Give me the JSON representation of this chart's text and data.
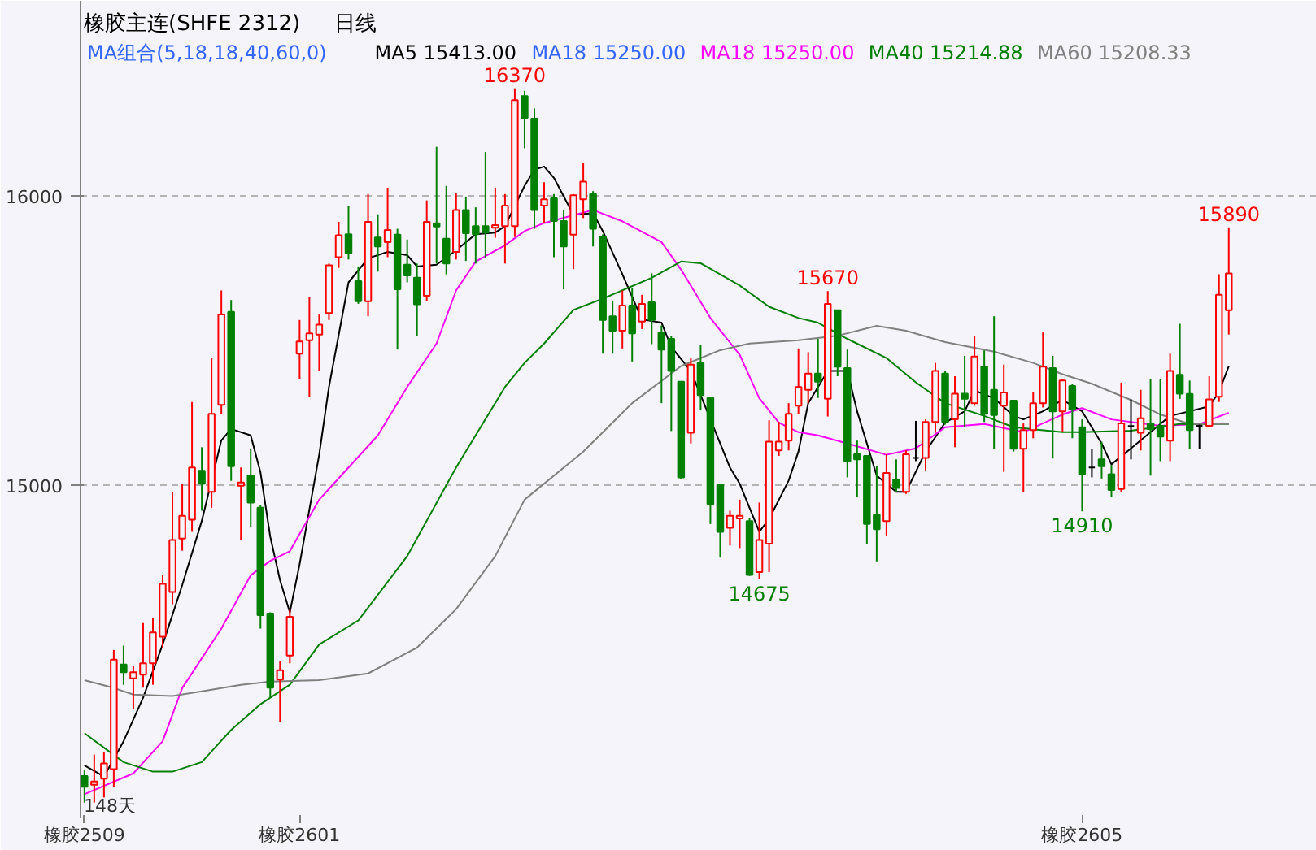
{
  "chart_data": {
    "type": "candlestick",
    "title": "橡胶主连(SHFE 2312)",
    "subtitle": "日线",
    "legend_title": "MA组合(5,18,18,40,60,0)",
    "categories": [
      "橡胶2509",
      null,
      null,
      null,
      null,
      null,
      null,
      null,
      null,
      null,
      null,
      null,
      null,
      null,
      null,
      null,
      null,
      null,
      null,
      null,
      null,
      null,
      "橡胶2601",
      null,
      null,
      null,
      null,
      null,
      null,
      null,
      null,
      null,
      null,
      null,
      null,
      null,
      null,
      null,
      null,
      null,
      null,
      null,
      null,
      null,
      null,
      null,
      null,
      null,
      null,
      null,
      null,
      null,
      null,
      null,
      null,
      null,
      null,
      null,
      null,
      null,
      null,
      null,
      null,
      null,
      null,
      null,
      null,
      null,
      null,
      null,
      null,
      null,
      null,
      null,
      null,
      null,
      null,
      null,
      null,
      null,
      null,
      null,
      null,
      null,
      null,
      null,
      null,
      null,
      null,
      null,
      null,
      null,
      null,
      null,
      null,
      null,
      null,
      null,
      null,
      null,
      null,
      null,
      "橡胶2605",
      null,
      null,
      null,
      null,
      null,
      null,
      null,
      null,
      null,
      null,
      null,
      null,
      null,
      null,
      null
    ],
    "ohlc": [
      [
        13996,
        14015,
        13904,
        13959
      ],
      [
        13966,
        14070,
        13904,
        13977
      ],
      [
        13987,
        14079,
        13922,
        14039
      ],
      [
        14020,
        14431,
        13959,
        14398
      ],
      [
        14381,
        14446,
        14311,
        14354
      ],
      [
        14333,
        14376,
        14227,
        14354
      ],
      [
        14346,
        14524,
        14301,
        14385
      ],
      [
        14385,
        14542,
        14311,
        14492
      ],
      [
        14477,
        14690,
        14440,
        14659
      ],
      [
        14631,
        14977,
        14589,
        14811
      ],
      [
        14816,
        15005,
        14774,
        14894
      ],
      [
        14881,
        15287,
        14839,
        15061
      ],
      [
        15050,
        15131,
        14912,
        15005
      ],
      [
        14977,
        15440,
        14922,
        15246
      ],
      [
        15277,
        15672,
        15246,
        15589
      ],
      [
        15598,
        15639,
        15015,
        15065
      ],
      [
        14998,
        15061,
        14811,
        15009
      ],
      [
        15033,
        15126,
        14857,
        14940
      ],
      [
        14922,
        14931,
        14505,
        14551
      ],
      [
        14557,
        14561,
        14265,
        14301
      ],
      [
        14329,
        14394,
        14181,
        14361
      ],
      [
        14412,
        14570,
        14385,
        14546
      ],
      [
        15454,
        15570,
        15366,
        15496
      ],
      [
        15500,
        15650,
        15305,
        15524
      ],
      [
        15520,
        15589,
        15394,
        15554
      ],
      [
        15594,
        15765,
        15570,
        15759
      ],
      [
        15787,
        15909,
        15750,
        15863
      ],
      [
        15866,
        15965,
        15779,
        15801
      ],
      [
        15704,
        15755,
        15626,
        15635
      ],
      [
        15635,
        16005,
        15583,
        15909
      ],
      [
        15855,
        15935,
        15737,
        15824
      ],
      [
        15839,
        16027,
        15787,
        15881
      ],
      [
        15865,
        15885,
        15468,
        15676
      ],
      [
        15761,
        15848,
        15700,
        15724
      ],
      [
        15716,
        15765,
        15515,
        15624
      ],
      [
        15654,
        15983,
        15635,
        15909
      ],
      [
        15904,
        16168,
        15765,
        15893
      ],
      [
        15851,
        16033,
        15728,
        15765
      ],
      [
        15805,
        16009,
        15779,
        15950
      ],
      [
        15950,
        15996,
        15774,
        15870
      ],
      [
        15894,
        15959,
        15765,
        15866
      ],
      [
        15894,
        16150,
        15783,
        15872
      ],
      [
        15889,
        16027,
        15854,
        15898
      ],
      [
        15894,
        16005,
        15765,
        15965
      ],
      [
        15894,
        16370,
        15857,
        16329
      ],
      [
        16343,
        16361,
        16163,
        16268
      ],
      [
        16265,
        16301,
        15885,
        15950
      ],
      [
        15965,
        16046,
        15904,
        15987
      ],
      [
        15990,
        16005,
        15787,
        15912
      ],
      [
        15912,
        15950,
        15676,
        15824
      ],
      [
        15865,
        16005,
        15746,
        16001
      ],
      [
        15987,
        16113,
        15922,
        16048
      ],
      [
        16005,
        16015,
        15824,
        15885
      ],
      [
        15857,
        15866,
        15454,
        15570
      ],
      [
        15583,
        15635,
        15454,
        15533
      ],
      [
        15533,
        15672,
        15472,
        15620
      ],
      [
        15620,
        15681,
        15427,
        15524
      ],
      [
        15565,
        15657,
        15539,
        15626
      ],
      [
        15631,
        15731,
        15487,
        15570
      ],
      [
        15527,
        15551,
        15283,
        15468
      ],
      [
        15505,
        15515,
        15187,
        15394
      ],
      [
        15357,
        15357,
        15020,
        15027
      ],
      [
        15181,
        15440,
        15144,
        15416
      ],
      [
        15422,
        15483,
        15261,
        15311
      ],
      [
        15301,
        15301,
        14866,
        14935
      ],
      [
        15001,
        15001,
        14750,
        14839
      ],
      [
        14853,
        14912,
        14792,
        14894
      ],
      [
        14885,
        14950,
        14783,
        14894
      ],
      [
        14876,
        14885,
        14687,
        14690
      ],
      [
        14700,
        14940,
        14675,
        14811
      ],
      [
        14798,
        15224,
        14700,
        15150
      ],
      [
        15120,
        15218,
        15101,
        15150
      ],
      [
        15154,
        15283,
        15120,
        15246
      ],
      [
        15274,
        15472,
        15246,
        15339
      ],
      [
        15329,
        15459,
        15283,
        15385
      ],
      [
        15385,
        15505,
        15301,
        15357
      ],
      [
        15298,
        15670,
        15237,
        15626
      ],
      [
        15604,
        15604,
        15376,
        15409
      ],
      [
        15404,
        15468,
        15027,
        15083
      ],
      [
        15107,
        15154,
        14959,
        15089
      ],
      [
        15101,
        15101,
        14798,
        14866
      ],
      [
        14898,
        15065,
        14737,
        14848
      ],
      [
        14876,
        15107,
        14824,
        15042
      ],
      [
        15020,
        15089,
        14977,
        14990
      ],
      [
        14977,
        15120,
        14970,
        15107
      ],
      [
        15094,
        15222,
        15083,
        15094
      ],
      [
        15094,
        15227,
        15051,
        15218
      ],
      [
        15218,
        15422,
        15181,
        15394
      ],
      [
        15385,
        15394,
        15209,
        15218
      ],
      [
        15227,
        15376,
        15131,
        15316
      ],
      [
        15316,
        15446,
        15200,
        15298
      ],
      [
        15283,
        15515,
        15274,
        15444
      ],
      [
        15409,
        15465,
        15218,
        15246
      ],
      [
        15329,
        15583,
        15126,
        15242
      ],
      [
        15274,
        15416,
        15046,
        15320
      ],
      [
        15292,
        15292,
        15116,
        15126
      ],
      [
        15126,
        15213,
        14977,
        15190
      ],
      [
        15190,
        15320,
        15162,
        15283
      ],
      [
        15283,
        15527,
        15268,
        15409
      ],
      [
        15404,
        15446,
        15092,
        15255
      ],
      [
        15255,
        15366,
        15185,
        15361
      ],
      [
        15342,
        15348,
        15162,
        15261
      ],
      [
        15200,
        15227,
        14910,
        15038
      ],
      [
        15061,
        15126,
        15027,
        15061
      ],
      [
        15089,
        15150,
        15023,
        15065
      ],
      [
        15038,
        15070,
        14959,
        14983
      ],
      [
        14987,
        15354,
        14977,
        15213
      ],
      [
        15204,
        15296,
        15089,
        15204
      ],
      [
        15181,
        15329,
        15120,
        15231
      ],
      [
        15213,
        15366,
        15033,
        15194
      ],
      [
        15205,
        15366,
        15083,
        15168
      ],
      [
        15154,
        15454,
        15083,
        15394
      ],
      [
        15381,
        15557,
        15298,
        15316
      ],
      [
        15315,
        15361,
        15126,
        15190
      ],
      [
        15205,
        15209,
        15126,
        15205
      ],
      [
        15205,
        15376,
        15200,
        15296
      ],
      [
        15305,
        15728,
        15287,
        15657
      ],
      [
        15604,
        15890,
        15520,
        15731
      ]
    ],
    "series": [
      {
        "name": "MA5 15413.00",
        "color": "#000000",
        "type": "line",
        "values": [
          14033,
          null,
          13994,
          null,
          14116,
          null,
          14266,
          null,
          14450,
          null,
          14655,
          null,
          14877,
          null,
          15155,
          15194,
          null,
          15172,
          15044,
          14822,
          14672,
          14561,
          14727,
          null,
          15105,
          15339,
          null,
          15700,
          null,
          15783,
          null,
          15805,
          null,
          15794,
          15755,
          null,
          15761,
          null,
          15811,
          null,
          15866,
          null,
          15872,
          15894,
          null,
          16033,
          16089,
          16100,
          16061,
          null,
          15933,
          null,
          15939,
          15877,
          null,
          15728,
          null,
          15572,
          null,
          15561,
          15477,
          null,
          15394,
          null,
          null,
          null,
          15061,
          15005,
          null,
          14839,
          14883,
          null,
          15016,
          15116,
          15283,
          null,
          15394,
          null,
          15394,
          15255,
          null,
          15033,
          null,
          14977,
          14977,
          null,
          15116,
          null,
          15216,
          null,
          15255,
          15327,
          null,
          15300,
          null,
          15239,
          15227,
          null,
          15255,
          null,
          15294,
          null,
          15255,
          null,
          15144,
          15072,
          null,
          15127,
          null,
          15183,
          null,
          15239,
          null,
          15255,
          null,
          15272,
          15322,
          15411
        ]
      },
      {
        "name": "MA18 15250.00",
        "color": "#3366ff",
        "type": "line",
        "values": [
          null,
          null,
          null,
          null,
          null,
          null,
          null,
          null,
          null,
          null,
          null,
          null,
          null,
          null,
          null,
          null,
          null,
          null,
          null,
          null,
          null,
          null,
          null,
          null,
          null,
          null,
          null,
          null,
          null,
          null,
          null,
          null,
          null,
          null,
          null,
          null,
          null,
          null,
          null,
          null,
          null,
          null,
          null,
          null,
          null,
          null,
          null,
          null,
          null,
          null,
          null,
          null,
          null,
          null,
          null,
          null,
          null,
          null,
          null,
          null,
          null,
          null,
          null,
          null,
          null,
          null,
          null,
          null,
          null,
          null,
          null,
          null,
          null,
          null,
          null,
          null,
          null,
          null,
          null,
          null,
          null,
          null,
          null,
          null,
          null,
          null,
          null,
          null,
          null,
          null,
          null,
          null,
          null,
          null,
          null,
          null,
          null,
          null,
          null,
          null,
          null,
          null,
          null,
          null,
          null,
          null,
          null,
          null,
          null,
          null,
          null,
          null,
          null,
          null,
          null,
          null,
          null,
          null
        ]
      },
      {
        "name": "MA18 15250.00",
        "color": "#ff00ff",
        "type": "line",
        "values": [
          13933,
          null,
          null,
          null,
          null,
          14005,
          null,
          null,
          14116,
          null,
          14300,
          null,
          null,
          null,
          14505,
          null,
          null,
          14689,
          null,
          14739,
          null,
          14772,
          null,
          null,
          14950,
          null,
          null,
          15061,
          null,
          null,
          15172,
          null,
          null,
          15339,
          null,
          null,
          15489,
          null,
          15672,
          null,
          15772,
          null,
          null,
          15828,
          null,
          15877,
          null,
          15905,
          null,
          null,
          null,
          null,
          15950,
          null,
          null,
          15911,
          null,
          null,
          null,
          15839,
          null,
          15744,
          null,
          null,
          15577,
          null,
          null,
          15450,
          null,
          15300,
          null,
          15216,
          null,
          15183,
          null,
          15172,
          null,
          null,
          15144,
          null,
          null,
          null,
          15105,
          null,
          null,
          15127,
          null,
          null,
          15200,
          null,
          null,
          null,
          15211,
          null,
          null,
          null,
          15183,
          null,
          null,
          null,
          15244,
          null,
          15266,
          null,
          null,
          15227,
          null,
          null,
          null,
          null,
          15205,
          null,
          null,
          null,
          15211,
          null,
          null,
          15250
        ]
      },
      {
        "name": "MA40 15214.88",
        "color": "#008000",
        "type": "line",
        "values": [
          14144,
          null,
          null,
          null,
          14044,
          null,
          null,
          14011,
          null,
          14011,
          null,
          null,
          14044,
          null,
          null,
          14155,
          null,
          null,
          14244,
          null,
          null,
          14311,
          null,
          null,
          14450,
          null,
          null,
          null,
          14533,
          null,
          null,
          null,
          null,
          14755,
          null,
          null,
          null,
          null,
          15061,
          null,
          null,
          null,
          null,
          15339,
          null,
          15422,
          null,
          15489,
          null,
          null,
          15605,
          null,
          null,
          15644,
          null,
          null,
          null,
          null,
          15716,
          null,
          null,
          15772,
          null,
          15766,
          null,
          null,
          null,
          15689,
          null,
          null,
          15616,
          null,
          null,
          15577,
          null,
          15561,
          null,
          null,
          15505,
          null,
          null,
          null,
          15439,
          null,
          null,
          15355,
          null,
          null,
          15283,
          null,
          null,
          null,
          15239,
          null,
          null,
          15200,
          null,
          null,
          null,
          null,
          15183,
          null,
          15183,
          null,
          null,
          null,
          null,
          15188,
          null,
          null,
          null,
          null,
          15211,
          null,
          null,
          null,
          null,
          15211
        ]
      },
      {
        "name": "MA60 15208.33",
        "color": "#808080",
        "type": "line",
        "values": [
          14327,
          null,
          null,
          14300,
          null,
          14277,
          null,
          null,
          null,
          14272,
          null,
          null,
          null,
          14294,
          null,
          null,
          14311,
          null,
          null,
          14322,
          null,
          null,
          null,
          null,
          14327,
          null,
          null,
          null,
          null,
          14350,
          null,
          null,
          null,
          null,
          14439,
          null,
          null,
          null,
          14572,
          null,
          null,
          null,
          14755,
          null,
          null,
          14950,
          null,
          null,
          null,
          null,
          null,
          15116,
          null,
          null,
          null,
          null,
          15283,
          null,
          null,
          null,
          null,
          15411,
          null,
          null,
          null,
          15466,
          null,
          null,
          15489,
          null,
          null,
          null,
          null,
          15500,
          null,
          null,
          null,
          15516,
          null,
          null,
          null,
          15550,
          null,
          null,
          15533,
          null,
          null,
          null,
          15494,
          null,
          null,
          null,
          null,
          15461,
          null,
          null,
          null,
          15422,
          null,
          null,
          15383,
          null,
          null,
          15350,
          null,
          null,
          null,
          15294,
          null,
          null,
          15244,
          null,
          null,
          15211,
          null,
          null,
          null,
          15211
        ]
      }
    ],
    "annotations": [
      {
        "text": "16370",
        "y": 16370
      },
      {
        "text": "15670",
        "y": 15670
      },
      {
        "text": "14675",
        "y": 14675
      },
      {
        "text": "14910",
        "y": 14910
      },
      {
        "text": "15890",
        "y": 15890
      },
      "148天"
    ],
    "ylim": [
      13850,
      16672
    ],
    "yticks": [
      15000,
      16000
    ],
    "grid": "y",
    "legend": "top"
  }
}
